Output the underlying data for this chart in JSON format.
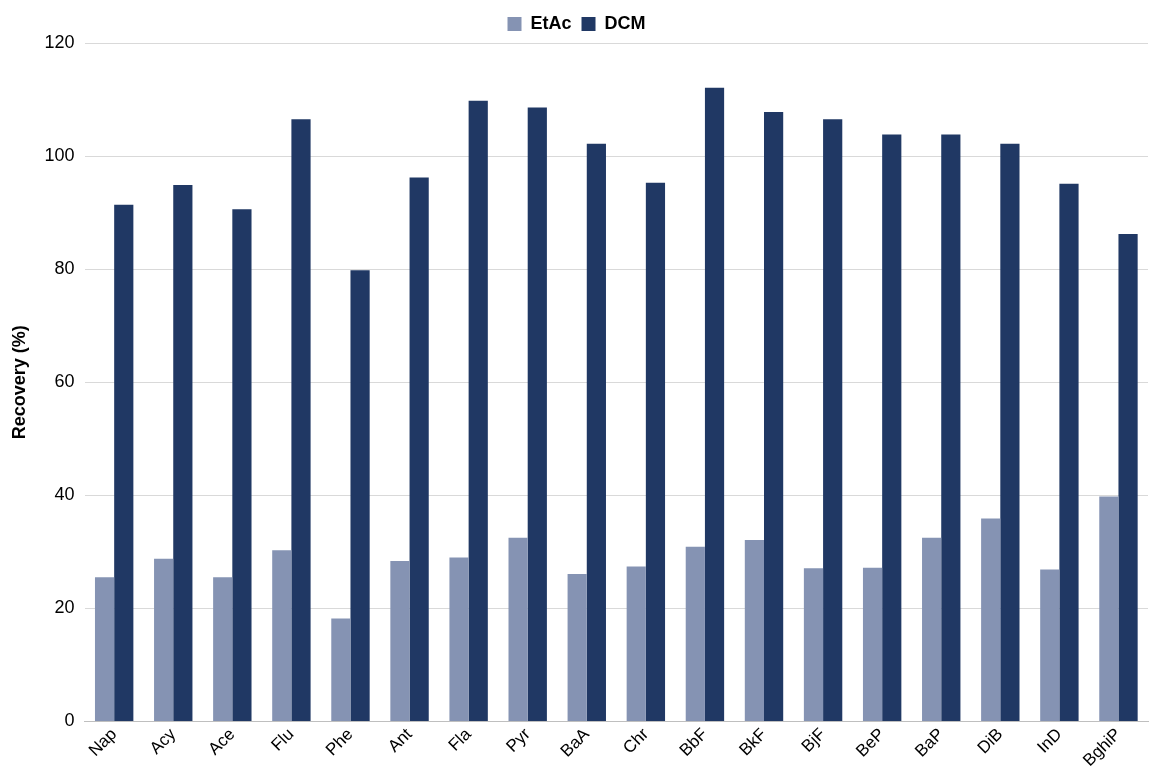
{
  "chart_data": {
    "type": "bar",
    "ylabel": "Recovery (%)",
    "categories": [
      "Nap",
      "Acy",
      "Ace",
      "Flu",
      "Phe",
      "Ant",
      "Fla",
      "Pyr",
      "BaA",
      "Chr",
      "BbF",
      "BkF",
      "BjF",
      "BeP",
      "BaP",
      "DiB",
      "InD",
      "BghiP"
    ],
    "series": [
      {
        "name": "EtAc",
        "color": "#8593b3",
        "values": [
          25.5,
          28.8,
          25.5,
          30.3,
          18.2,
          28.4,
          29,
          32.5,
          26.1,
          27.4,
          30.9,
          32.1,
          27.1,
          27.2,
          32.5,
          35.9,
          26.9,
          39.8
        ]
      },
      {
        "name": "DCM",
        "color": "#203864",
        "values": [
          91.4,
          94.9,
          90.6,
          106.5,
          79.8,
          96.2,
          109.8,
          108.6,
          102.2,
          95.3,
          112.1,
          107.8,
          106.5,
          103.8,
          103.8,
          102.2,
          95.1,
          86.2
        ]
      }
    ],
    "ylim": [
      0,
      120
    ],
    "yticks": [
      0,
      20,
      40,
      60,
      80,
      100,
      120
    ],
    "grid": "y",
    "legend": "top"
  }
}
